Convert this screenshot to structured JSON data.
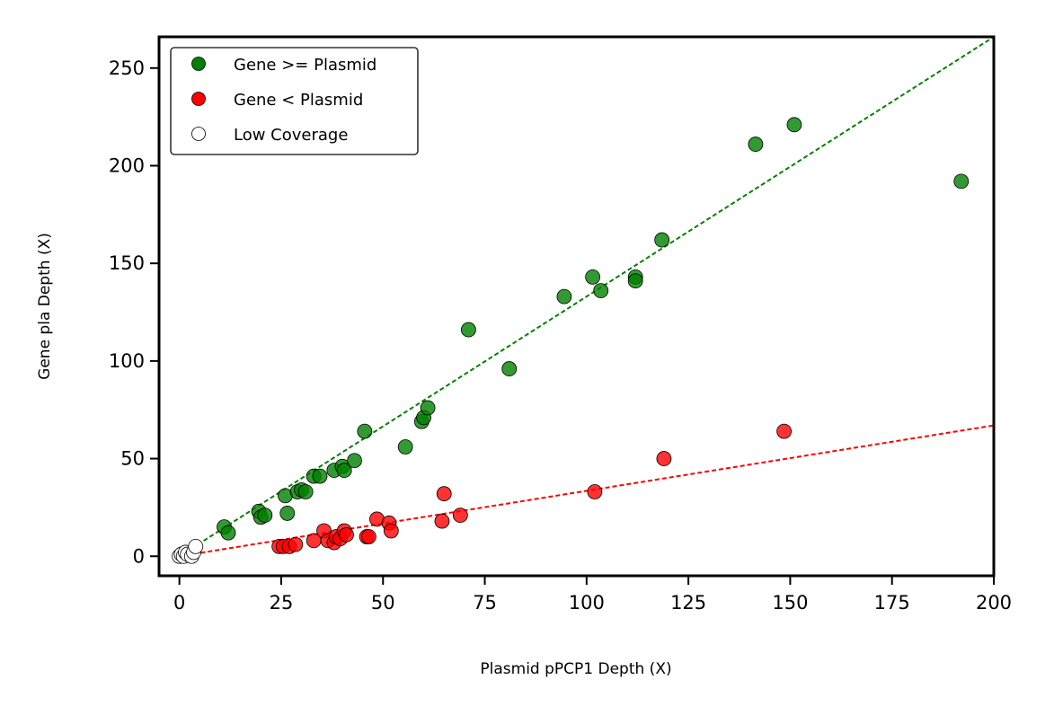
{
  "chart_data": {
    "type": "scatter",
    "title": "",
    "xlabel": "Plasmid pPCP1 Depth (X)",
    "ylabel": "Gene pla Depth (X)",
    "xlim": [
      -5,
      200
    ],
    "ylim": [
      -10,
      266
    ],
    "xticks": [
      "0",
      "25",
      "50",
      "75",
      "100",
      "125",
      "150",
      "175",
      "200"
    ],
    "yticks": [
      "0",
      "50",
      "100",
      "150",
      "200",
      "250"
    ],
    "grid": false,
    "legend_position": "upper-left",
    "series": [
      {
        "name": "Gene >= Plasmid",
        "color": "#008000",
        "points": [
          [
            11,
            15
          ],
          [
            12,
            12
          ],
          [
            19.5,
            23
          ],
          [
            20,
            20
          ],
          [
            21,
            21
          ],
          [
            26,
            31
          ],
          [
            26.5,
            22
          ],
          [
            29,
            33
          ],
          [
            30,
            34
          ],
          [
            31,
            33
          ],
          [
            33,
            41
          ],
          [
            34.5,
            41
          ],
          [
            38,
            44
          ],
          [
            40,
            46
          ],
          [
            40.5,
            44
          ],
          [
            43,
            49
          ],
          [
            45.5,
            64
          ],
          [
            55.5,
            56
          ],
          [
            59.5,
            69
          ],
          [
            60,
            71
          ],
          [
            61,
            76
          ],
          [
            71,
            116
          ],
          [
            81,
            96
          ],
          [
            94.5,
            133
          ],
          [
            101.5,
            143
          ],
          [
            103.5,
            136
          ],
          [
            112,
            143
          ],
          [
            112,
            141
          ],
          [
            118.5,
            162
          ],
          [
            141.5,
            211
          ],
          [
            151,
            221
          ],
          [
            192,
            192
          ]
        ]
      },
      {
        "name": "Gene < Plasmid",
        "color": "#ff0000",
        "points": [
          [
            24.5,
            5
          ],
          [
            25.5,
            5
          ],
          [
            27,
            5
          ],
          [
            28.5,
            6
          ],
          [
            33,
            8
          ],
          [
            35.5,
            13
          ],
          [
            36.5,
            8
          ],
          [
            38,
            7
          ],
          [
            38.5,
            10
          ],
          [
            39.5,
            9
          ],
          [
            40.5,
            13
          ],
          [
            41,
            11
          ],
          [
            46,
            10
          ],
          [
            46.5,
            10
          ],
          [
            48.5,
            19
          ],
          [
            51.5,
            17
          ],
          [
            52,
            13
          ],
          [
            64.5,
            18
          ],
          [
            65,
            32
          ],
          [
            69,
            21
          ],
          [
            102,
            33
          ],
          [
            119,
            50
          ],
          [
            148.5,
            64
          ]
        ]
      },
      {
        "name": "Low Coverage",
        "color": "#ffffff",
        "points": [
          [
            0,
            0
          ],
          [
            0.5,
            1
          ],
          [
            1,
            0
          ],
          [
            1.5,
            2
          ],
          [
            2,
            1
          ],
          [
            3,
            0
          ],
          [
            3.5,
            2
          ],
          [
            4,
            5
          ]
        ]
      }
    ],
    "trend_lines": [
      {
        "color": "#008000",
        "x": [
          0,
          200
        ],
        "y": [
          0,
          266
        ]
      },
      {
        "color": "#ff0000",
        "x": [
          0,
          200
        ],
        "y": [
          0,
          67
        ]
      }
    ]
  }
}
